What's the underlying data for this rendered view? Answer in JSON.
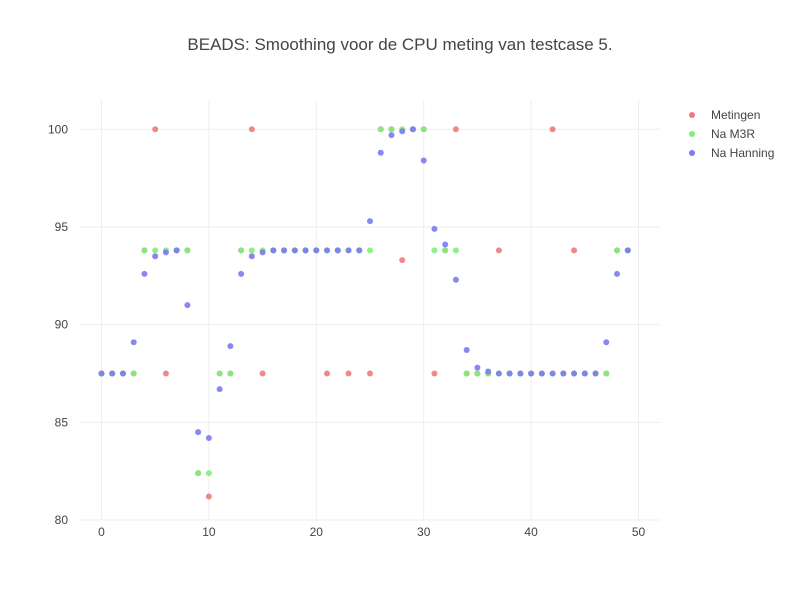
{
  "chart_data": {
    "type": "scatter",
    "title": "BEADS: Smoothing voor de CPU meting van testcase 5.",
    "xlabel": "",
    "ylabel": "",
    "xlim": [
      -2,
      52
    ],
    "ylim": [
      80,
      101.5
    ],
    "x_ticks": [
      0,
      10,
      20,
      30,
      40,
      50
    ],
    "y_ticks": [
      80,
      85,
      90,
      95,
      100
    ],
    "grid": true,
    "legend_position": "top-right",
    "series": [
      {
        "name": "Metingen",
        "color": "#f07b7b",
        "x": [
          0,
          1,
          2,
          3,
          4,
          5,
          6,
          7,
          8,
          9,
          10,
          11,
          12,
          13,
          14,
          15,
          16,
          17,
          18,
          19,
          20,
          21,
          22,
          23,
          24,
          25,
          26,
          27,
          28,
          29,
          30,
          31,
          32,
          33,
          34,
          35,
          36,
          37,
          38,
          39,
          40,
          41,
          42,
          43,
          44,
          45,
          46,
          47,
          48,
          49
        ],
        "y": [
          87.5,
          87.5,
          87.5,
          87.5,
          93.8,
          100,
          87.5,
          93.8,
          93.8,
          82.4,
          81.2,
          87.5,
          87.5,
          93.8,
          100,
          87.5,
          93.8,
          93.8,
          93.8,
          93.8,
          93.8,
          87.5,
          93.8,
          87.5,
          93.8,
          87.5,
          100,
          100,
          93.3,
          100,
          100,
          87.5,
          93.8,
          100,
          87.5,
          87.5,
          87.5,
          93.8,
          87.5,
          87.5,
          87.5,
          87.5,
          100,
          87.5,
          93.8,
          87.5,
          87.5,
          87.5,
          93.8,
          93.8
        ]
      },
      {
        "name": "Na M3R",
        "color": "#7ef07b",
        "x": [
          0,
          1,
          2,
          3,
          4,
          5,
          6,
          7,
          8,
          9,
          10,
          11,
          12,
          13,
          14,
          15,
          16,
          17,
          18,
          19,
          20,
          21,
          22,
          23,
          24,
          25,
          26,
          27,
          28,
          29,
          30,
          31,
          32,
          33,
          34,
          35,
          36,
          37,
          38,
          39,
          40,
          41,
          42,
          43,
          44,
          45,
          46,
          47,
          48,
          49
        ],
        "y": [
          87.5,
          87.5,
          87.5,
          87.5,
          93.8,
          93.8,
          93.8,
          93.8,
          93.8,
          82.4,
          82.4,
          87.5,
          87.5,
          93.8,
          93.8,
          93.8,
          93.8,
          93.8,
          93.8,
          93.8,
          93.8,
          93.8,
          93.8,
          93.8,
          93.8,
          93.8,
          100,
          100,
          100,
          100,
          100,
          93.8,
          93.8,
          93.8,
          87.5,
          87.5,
          87.5,
          87.5,
          87.5,
          87.5,
          87.5,
          87.5,
          87.5,
          87.5,
          87.5,
          87.5,
          87.5,
          87.5,
          93.8,
          93.8
        ]
      },
      {
        "name": "Na Hanning",
        "color": "#7b7bf0",
        "x": [
          0,
          1,
          2,
          3,
          4,
          5,
          6,
          7,
          8,
          9,
          10,
          11,
          12,
          13,
          14,
          15,
          16,
          17,
          18,
          19,
          20,
          21,
          22,
          23,
          24,
          25,
          26,
          27,
          28,
          29,
          30,
          31,
          32,
          33,
          34,
          35,
          36,
          37,
          38,
          39,
          40,
          41,
          42,
          43,
          44,
          45,
          46,
          47,
          48,
          49
        ],
        "y": [
          87.5,
          87.5,
          87.5,
          89.1,
          92.6,
          93.5,
          93.7,
          93.8,
          91.0,
          84.5,
          84.2,
          86.7,
          88.9,
          92.6,
          93.5,
          93.7,
          93.8,
          93.8,
          93.8,
          93.8,
          93.8,
          93.8,
          93.8,
          93.8,
          93.8,
          95.3,
          98.8,
          99.7,
          99.9,
          100,
          98.4,
          94.9,
          94.1,
          92.3,
          88.7,
          87.8,
          87.6,
          87.5,
          87.5,
          87.5,
          87.5,
          87.5,
          87.5,
          87.5,
          87.5,
          87.5,
          87.5,
          89.1,
          92.6,
          93.8
        ]
      }
    ]
  }
}
